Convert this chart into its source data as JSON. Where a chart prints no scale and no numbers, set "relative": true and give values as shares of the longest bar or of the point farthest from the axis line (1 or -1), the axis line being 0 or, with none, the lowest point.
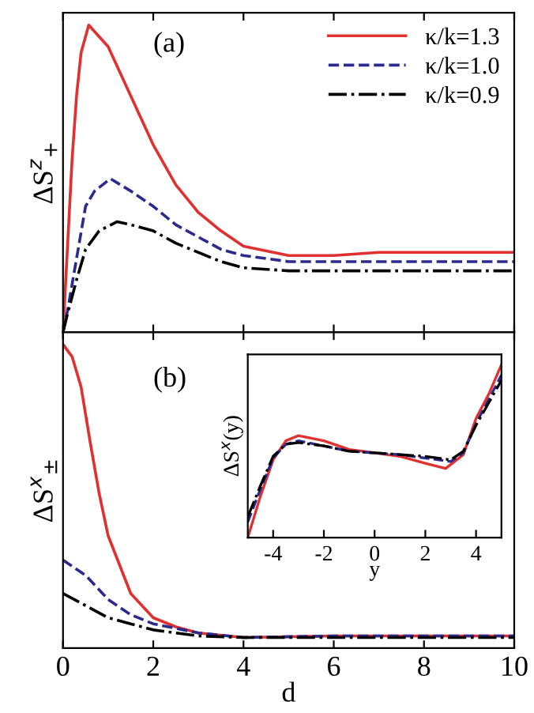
{
  "chart_data": [
    {
      "type": "line",
      "relative": true,
      "ylabel": "ΔS$^{z}$$_{+}$",
      "annotations": [
        "(a)"
      ],
      "xlim": [
        0,
        10
      ],
      "xticks": [
        0,
        2,
        4,
        6,
        8,
        10
      ],
      "tick_labels": false,
      "legend": "top right",
      "grid": false,
      "marker": "none",
      "series": [
        {
          "name": "κ/k=1.3",
          "color": "#e03030",
          "line_style": "solid",
          "x": [
            0,
            0.1,
            0.2,
            0.3,
            0.4,
            0.57,
            1,
            1.5,
            2,
            2.5,
            3,
            3.5,
            4,
            5,
            6,
            7,
            8,
            10
          ],
          "values": [
            0,
            0.28,
            0.56,
            0.77,
            0.91,
            1,
            0.93,
            0.77,
            0.61,
            0.48,
            0.39,
            0.33,
            0.28,
            0.25,
            0.25,
            0.26,
            0.26,
            0.26
          ]
        },
        {
          "name": "κ/k=1.0",
          "color": "#2b2b8f",
          "line_style": "dashed",
          "x": [
            0,
            0.1,
            0.3,
            0.5,
            0.7,
            1.05,
            1.5,
            2,
            2.5,
            3,
            3.5,
            4,
            5,
            6,
            8,
            10
          ],
          "values": [
            0,
            0.07,
            0.24,
            0.41,
            0.46,
            0.5,
            0.46,
            0.41,
            0.35,
            0.31,
            0.27,
            0.25,
            0.23,
            0.23,
            0.23,
            0.23
          ]
        },
        {
          "name": "κ/k=0.9",
          "color": "#000000",
          "line_style": "dashdot",
          "x": [
            0,
            0.1,
            0.3,
            0.5,
            0.8,
            1.2,
            1.5,
            2,
            2.5,
            3,
            3.5,
            4,
            5,
            6,
            8,
            10
          ],
          "values": [
            0,
            0.06,
            0.17,
            0.27,
            0.33,
            0.36,
            0.35,
            0.33,
            0.29,
            0.26,
            0.23,
            0.21,
            0.2,
            0.2,
            0.2,
            0.2
          ]
        }
      ]
    },
    {
      "type": "line",
      "relative": true,
      "ylabel": "ΔS$^{x}$$_{±}$",
      "xlabel": "d",
      "annotations": [
        "(b)"
      ],
      "xlim": [
        0,
        10
      ],
      "xticks": [
        0,
        2,
        4,
        6,
        8,
        10
      ],
      "tick_labels": "x",
      "grid": false,
      "marker": "none",
      "series": [
        {
          "color": "#e03030",
          "line_style": "solid",
          "x": [
            0,
            0.2,
            0.4,
            0.6,
            0.8,
            1,
            1.5,
            2,
            2.5,
            3,
            4,
            6,
            8,
            10
          ],
          "values": [
            1,
            0.96,
            0.86,
            0.68,
            0.51,
            0.37,
            0.18,
            0.1,
            0.07,
            0.05,
            0.035,
            0.04,
            0.04,
            0.04
          ]
        },
        {
          "color": "#2b2b8f",
          "line_style": "dashed",
          "x": [
            0,
            0.5,
            1,
            1.5,
            2,
            3,
            4,
            6,
            8,
            10
          ],
          "values": [
            0.29,
            0.24,
            0.16,
            0.11,
            0.08,
            0.05,
            0.035,
            0.04,
            0.04,
            0.04
          ]
        },
        {
          "color": "#000000",
          "line_style": "dashdot",
          "x": [
            0,
            0.5,
            1,
            1.5,
            2,
            3,
            4,
            6,
            8,
            10
          ],
          "values": [
            0.18,
            0.14,
            0.1,
            0.08,
            0.06,
            0.04,
            0.035,
            0.035,
            0.035,
            0.035
          ]
        }
      ]
    },
    {
      "type": "line",
      "relative": true,
      "ylabel": "ΔS$^{x}$(y)",
      "xlabel": "y",
      "xlim": [
        -5,
        5
      ],
      "xticks": [
        -4,
        -2,
        0,
        2,
        4
      ],
      "tick_labels": "x",
      "grid": false,
      "marker": "none",
      "series": [
        {
          "color": "#e03030",
          "line_style": "solid",
          "x": [
            -5,
            -4.5,
            -4,
            -3.5,
            -3,
            -2,
            -1,
            0,
            1,
            2,
            2.8,
            3.5,
            4,
            4.5,
            5
          ],
          "values": [
            0,
            0.24,
            0.45,
            0.56,
            0.59,
            0.56,
            0.51,
            0.49,
            0.47,
            0.43,
            0.4,
            0.48,
            0.69,
            0.83,
            1
          ]
        },
        {
          "color": "#2b2b8f",
          "line_style": "dashed",
          "x": [
            -5,
            -4.5,
            -4,
            -3.5,
            -3,
            -2,
            -1,
            0,
            1,
            2,
            3,
            3.5,
            4,
            4.5,
            5
          ],
          "values": [
            0.09,
            0.28,
            0.46,
            0.54,
            0.56,
            0.53,
            0.5,
            0.49,
            0.48,
            0.46,
            0.44,
            0.49,
            0.66,
            0.8,
            0.94
          ]
        },
        {
          "color": "#000000",
          "line_style": "dashdot",
          "x": [
            -5,
            -4.5,
            -4,
            -3.5,
            -3,
            -2,
            -1,
            0,
            1,
            2,
            3,
            3.5,
            4,
            4.5,
            5
          ],
          "values": [
            0.12,
            0.3,
            0.47,
            0.54,
            0.55,
            0.53,
            0.5,
            0.49,
            0.48,
            0.47,
            0.45,
            0.5,
            0.65,
            0.78,
            0.91
          ]
        }
      ]
    }
  ]
}
